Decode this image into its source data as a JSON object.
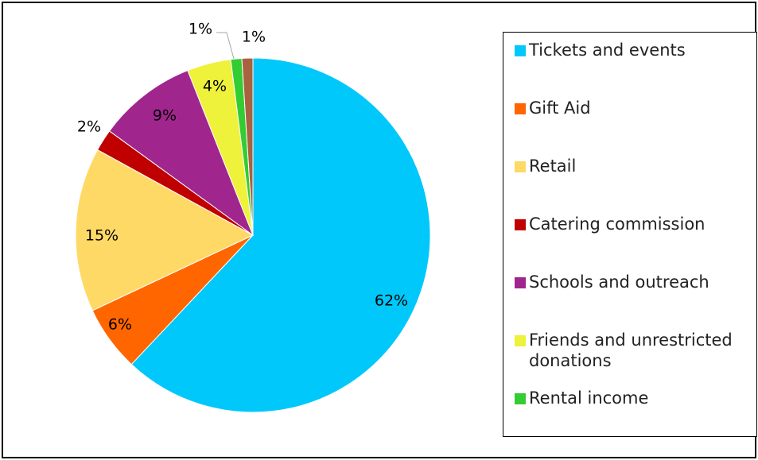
{
  "chart_data": {
    "type": "pie",
    "title": "",
    "slices": [
      {
        "label": "Tickets and events",
        "value": 62,
        "display": "62%",
        "color": "#00C8FA"
      },
      {
        "label": "Gift Aid",
        "value": 6,
        "display": "6%",
        "color": "#FF6600"
      },
      {
        "label": "Retail",
        "value": 15,
        "display": "15%",
        "color": "#FFD966"
      },
      {
        "label": "Catering commission",
        "value": 2,
        "display": "2%",
        "color": "#C00000"
      },
      {
        "label": "Schools and outreach",
        "value": 9,
        "display": "9%",
        "color": "#A0268E"
      },
      {
        "label": "Friends and unrestricted donations",
        "value": 4,
        "display": "4%",
        "color": "#EEF23A"
      },
      {
        "label": "Rental income",
        "value": 1,
        "display": "1%",
        "color": "#33CC33"
      },
      {
        "label": "",
        "value": 1,
        "display": "1%",
        "color": "#A9623F"
      }
    ],
    "legend_position": "right",
    "start_angle_deg": 0,
    "direction": "clockwise"
  },
  "legend": {
    "items": [
      {
        "label": "Tickets and events",
        "color": "#00C8FA"
      },
      {
        "label": "Gift Aid",
        "color": "#FF6600"
      },
      {
        "label": "Retail",
        "color": "#FFD966"
      },
      {
        "label": "Catering commission",
        "color": "#C00000"
      },
      {
        "label": "Schools and outreach",
        "color": "#A0268E"
      },
      {
        "label": "Friends and unrestricted donations",
        "color": "#EEF23A"
      },
      {
        "label": "Rental income",
        "color": "#33CC33"
      }
    ]
  }
}
